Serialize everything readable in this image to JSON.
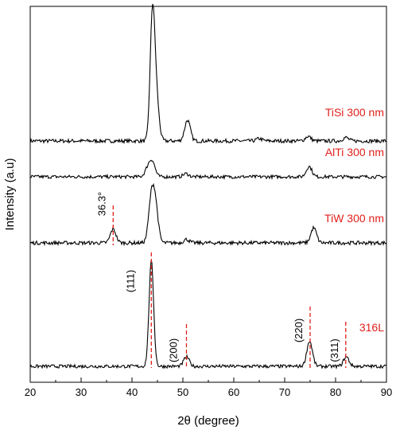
{
  "chart_data": {
    "type": "line",
    "xlabel": "2θ (degree)",
    "ylabel": "Intensity (a.u)",
    "xlim": [
      20,
      90
    ],
    "x_ticks": [
      "20",
      "30",
      "40",
      "50",
      "60",
      "70",
      "80",
      "90"
    ],
    "y_ticks_shown": false,
    "grid": false,
    "colors": {
      "line": "#000000",
      "label": "#e0201c",
      "marker": "#e0201c"
    },
    "series": [
      {
        "name": "TiSi 300 nm",
        "baseline": 0.0,
        "peaks": [
          {
            "x": 44.0,
            "height": 100
          },
          {
            "x": 44.7,
            "height": 40
          },
          {
            "x": 50.9,
            "height": 18
          },
          {
            "x": 65.0,
            "height": 2
          },
          {
            "x": 74.6,
            "height": 4
          },
          {
            "x": 82.0,
            "height": 3
          }
        ]
      },
      {
        "name": "AlTi 300 nm",
        "baseline": 0.0,
        "peaks": [
          {
            "x": 43.1,
            "height": 8
          },
          {
            "x": 44.0,
            "height": 14
          },
          {
            "x": 50.6,
            "height": 3
          },
          {
            "x": 74.8,
            "height": 10
          }
        ]
      },
      {
        "name": "TiW 300 nm",
        "baseline": 0.0,
        "peaks": [
          {
            "x": 36.3,
            "height": 12
          },
          {
            "x": 43.8,
            "height": 36
          },
          {
            "x": 44.6,
            "height": 30
          },
          {
            "x": 50.7,
            "height": 3
          },
          {
            "x": 75.7,
            "height": 13
          }
        ]
      },
      {
        "name": "316L",
        "baseline": 0.0,
        "peaks": [
          {
            "x": 43.8,
            "height": 100
          },
          {
            "x": 50.7,
            "height": 9
          },
          {
            "x": 74.9,
            "height": 24
          },
          {
            "x": 82.1,
            "height": 9
          }
        ]
      }
    ],
    "annotations": [
      {
        "text": "36.3°",
        "x": 36.3,
        "series": "TiW 300 nm"
      },
      {
        "text": "(111)",
        "x": 43.8,
        "series": "316L"
      },
      {
        "text": "(200)",
        "x": 50.7,
        "series": "316L"
      },
      {
        "text": "(220)",
        "x": 75.0,
        "series": "316L"
      },
      {
        "text": "(311)",
        "x": 82.0,
        "series": "316L"
      }
    ]
  }
}
